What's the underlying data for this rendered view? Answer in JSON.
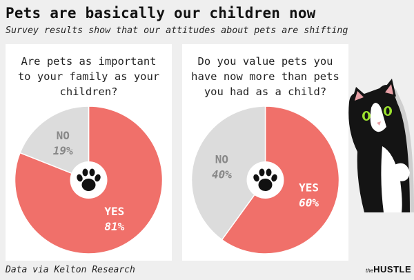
{
  "title": "Pets are basically our children now",
  "subtitle": "Survey results show that our attitudes about pets are shifting",
  "footer": "Data via Kelton Research",
  "brand": {
    "prefix": "the",
    "name": "HUSTLE"
  },
  "colors": {
    "yes": "#f0706a",
    "no": "#dcdcdc",
    "paw": "#111111",
    "yes_label": "#ffffff",
    "no_label": "#888888"
  },
  "icons": {
    "center": "paw-icon",
    "illustration": "cat-illustration"
  },
  "chart_data": [
    {
      "type": "pie",
      "title": "Are pets as important to your family as your children?",
      "title_lines": [
        "Are pets as important",
        "to your family as your",
        "children?"
      ],
      "slices": [
        {
          "name": "YES",
          "value": 81,
          "label": "81%"
        },
        {
          "name": "NO",
          "value": 19,
          "label": "19%"
        }
      ]
    },
    {
      "type": "pie",
      "title": "Do you value pets you have now more than pets you had as a child?",
      "title_lines": [
        "Do you value pets you",
        "have now more than pets",
        "you had as a child?"
      ],
      "slices": [
        {
          "name": "YES",
          "value": 60,
          "label": "60%"
        },
        {
          "name": "NO",
          "value": 40,
          "label": "40%"
        }
      ]
    }
  ]
}
